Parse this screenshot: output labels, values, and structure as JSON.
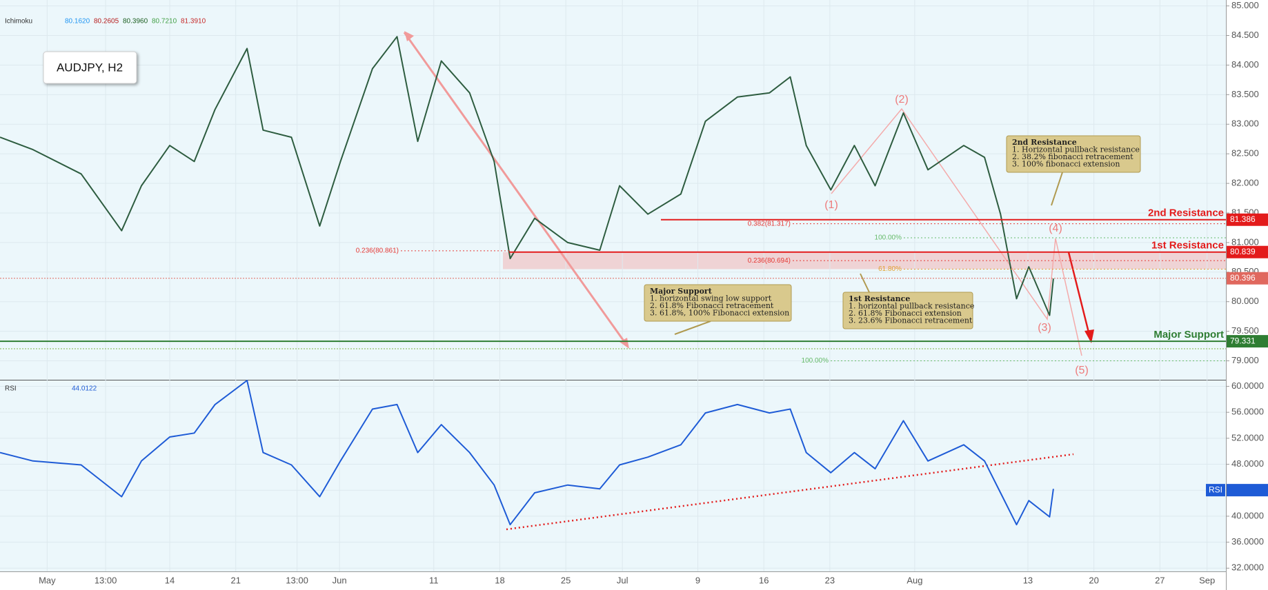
{
  "header": {
    "indicator": "Ichimoku",
    "indicator_values": [
      {
        "value": 80.162,
        "label": "80.1620",
        "color": "#2196f3"
      },
      {
        "value": 80.2605,
        "label": "80.2605",
        "color": "#b71c1c"
      },
      {
        "value": 80.396,
        "label": "80.3960",
        "color": "#1b5e20"
      },
      {
        "value": 80.721,
        "label": "80.7210",
        "color": "#43a047"
      },
      {
        "value": 81.391,
        "label": "81.3910",
        "color": "#c62828"
      }
    ],
    "symbol": "AUDJPY, H2"
  },
  "chart_data": [
    {
      "type": "line",
      "color": "#2d5c3f",
      "grid": true,
      "x": [
        -5,
        -1.5,
        3.6,
        7.9,
        10,
        13,
        15.6,
        17.8,
        21.2,
        22.9,
        25.9,
        28.9,
        31.1,
        34.5,
        37.1,
        39.3,
        41.8,
        44.8,
        47.4,
        49.1,
        51.7,
        55.2,
        58.6,
        60.7,
        63.7,
        67.2,
        69.8,
        73.2,
        76.6,
        78.8,
        80.5,
        83.1,
        85.6,
        87.8,
        90.8,
        93.4,
        97.2,
        99.4,
        101.1,
        102.8,
        104.1,
        106.3,
        106.7
      ],
      "values": [
        82.78,
        82.57,
        82.16,
        81.2,
        81.96,
        82.64,
        82.37,
        83.25,
        84.28,
        82.9,
        82.78,
        81.28,
        82.37,
        83.94,
        84.48,
        82.71,
        84.07,
        83.53,
        82.37,
        80.73,
        81.41,
        81.0,
        80.87,
        81.96,
        81.48,
        81.82,
        83.05,
        83.46,
        83.53,
        83.8,
        82.64,
        81.89,
        82.64,
        81.96,
        83.19,
        82.23,
        82.64,
        82.44,
        81.48,
        80.05,
        80.59,
        79.77,
        80.39
      ],
      "xlim": [
        -5,
        125
      ],
      "ylim": [
        78.68,
        85.1
      ],
      "yticks": [
        {
          "value": 85,
          "label": "85.000"
        },
        {
          "value": 84.5,
          "label": "84.500"
        },
        {
          "value": 84,
          "label": "84.000"
        },
        {
          "value": 83.5,
          "label": "83.500"
        },
        {
          "value": 83,
          "label": "83.000"
        },
        {
          "value": 82.5,
          "label": "82.500"
        },
        {
          "value": 82,
          "label": "82.000"
        },
        {
          "value": 81.5,
          "label": "81.500"
        },
        {
          "value": 81,
          "label": "81.000"
        },
        {
          "value": 80.5,
          "label": "80.500"
        },
        {
          "value": 80,
          "label": "80.000"
        },
        {
          "value": 79.5,
          "label": "79.500"
        },
        {
          "value": 79,
          "label": "79.000"
        }
      ],
      "levels": [
        {
          "name": "2nd Resistance",
          "value": 81.386,
          "color": "#e31b1b"
        },
        {
          "name": "1st Resistance",
          "value": 80.839,
          "color": "#e31b1b"
        },
        {
          "value": 80.396,
          "color": "#e0685e",
          "dashed": true
        },
        {
          "name": "Major Support",
          "value": 79.331,
          "color": "#2e7d32"
        }
      ],
      "fibs": [
        {
          "label": "0.382(81.317)",
          "value": 81.317,
          "color": "#e53935"
        },
        {
          "label": "0.236(80.861)",
          "value": 80.861,
          "color": "#e53935"
        },
        {
          "label": "0.236(80.694)",
          "value": 80.694,
          "color": "#e53935"
        },
        {
          "label": "61.80%",
          "value": 80.55,
          "color": "#e0a030"
        },
        {
          "label": "100.00%",
          "value": 81.08,
          "color": "#66bb6a"
        },
        {
          "label": "100.00%",
          "value": 79.0,
          "color": "#66bb6a"
        }
      ],
      "waves": [
        "(1)",
        "(2)",
        "(3)",
        "(4)",
        "(5)"
      ],
      "notes": [
        {
          "lines": [
            "Major Support",
            "1. horizontal swing low support",
            "2. 61.8% Fibonacci retracement",
            "3. 61.8%, 100% Fibonacci extension"
          ]
        },
        {
          "lines": [
            "1st Resistance",
            "1. horizontal pullback resistance",
            "2. 61.8% Fibonacci extension",
            "3. 23.6% Fibonacci retracement"
          ]
        },
        {
          "lines": [
            "2nd Resistance",
            "1. Horizontal pullback resistance",
            "2. 38.2%  fibonacci retracement",
            "3. 100% fibonacci extension"
          ]
        }
      ]
    },
    {
      "type": "line",
      "indicator": "RSI",
      "last_value": 44.0122,
      "badge": "RSI",
      "color": "#1e5bd6",
      "grid": true,
      "x": [
        -5,
        -1.5,
        3.6,
        7.9,
        10,
        13,
        15.6,
        17.8,
        21.2,
        22.9,
        25.9,
        28.9,
        31.1,
        34.5,
        37.1,
        39.3,
        41.8,
        44.8,
        47.4,
        49.1,
        51.7,
        55.2,
        58.6,
        60.7,
        63.7,
        67.2,
        69.8,
        73.2,
        76.6,
        78.8,
        80.5,
        83.1,
        85.6,
        87.8,
        90.8,
        93.4,
        97.2,
        99.4,
        101.1,
        102.8,
        104.1,
        106.3,
        106.7
      ],
      "values": [
        49.8,
        48.5,
        47.9,
        43.0,
        48.5,
        52.2,
        52.8,
        57.2,
        60.9,
        49.8,
        47.9,
        43.0,
        48.5,
        56.5,
        57.2,
        49.8,
        54.1,
        49.8,
        44.8,
        38.7,
        43.6,
        44.8,
        44.2,
        47.9,
        49.1,
        51.0,
        55.9,
        57.2,
        55.9,
        56.5,
        49.8,
        46.7,
        49.8,
        47.3,
        54.7,
        48.5,
        51.0,
        48.5,
        43.6,
        38.7,
        42.4,
        39.9,
        44.2
      ],
      "xlim": [
        -5,
        125
      ],
      "ylim": [
        31.5,
        60.9
      ],
      "yticks": [
        {
          "value": 60,
          "label": "60.0000"
        },
        {
          "value": 56,
          "label": "56.0000"
        },
        {
          "value": 52,
          "label": "52.0000"
        },
        {
          "value": 48,
          "label": "48.0000"
        },
        {
          "value": 44,
          "label": "44.0000"
        },
        {
          "value": 40,
          "label": "40.0000"
        },
        {
          "value": 36,
          "label": "36.0000"
        },
        {
          "value": 32,
          "label": "32.0000"
        }
      ],
      "xticks": [
        {
          "value": 0,
          "label": "May"
        },
        {
          "value": 6.2,
          "label": "13:00"
        },
        {
          "value": 13,
          "label": "14"
        },
        {
          "value": 20,
          "label": "21"
        },
        {
          "value": 26.5,
          "label": "13:00"
        },
        {
          "value": 31,
          "label": "Jun"
        },
        {
          "value": 41,
          "label": "11"
        },
        {
          "value": 48,
          "label": "18"
        },
        {
          "value": 55,
          "label": "25"
        },
        {
          "value": 61,
          "label": "Jul"
        },
        {
          "value": 69,
          "label": "9"
        },
        {
          "value": 76,
          "label": "16"
        },
        {
          "value": 83,
          "label": "23"
        },
        {
          "value": 92,
          "label": "Aug"
        },
        {
          "value": 104,
          "label": "13"
        },
        {
          "value": 111,
          "label": "20"
        },
        {
          "value": 118,
          "label": "27"
        },
        {
          "value": 123,
          "label": "Sep"
        }
      ]
    }
  ]
}
